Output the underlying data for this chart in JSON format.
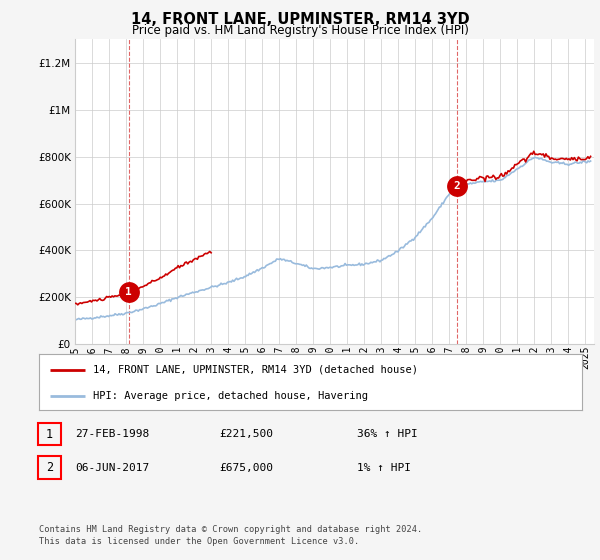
{
  "title": "14, FRONT LANE, UPMINSTER, RM14 3YD",
  "subtitle": "Price paid vs. HM Land Registry's House Price Index (HPI)",
  "ylim": [
    0,
    1300000
  ],
  "yticks": [
    0,
    200000,
    400000,
    600000,
    800000,
    1000000,
    1200000
  ],
  "ytick_labels": [
    "£0",
    "£200K",
    "£400K",
    "£600K",
    "£800K",
    "£1M",
    "£1.2M"
  ],
  "bg_color": "#f5f5f5",
  "plot_bg_color": "#ffffff",
  "grid_color": "#cccccc",
  "red_color": "#cc0000",
  "blue_color": "#99bbdd",
  "sale1_x": 1998.16,
  "sale1_y": 221500,
  "sale2_x": 2017.43,
  "sale2_y": 675000,
  "legend_line1": "14, FRONT LANE, UPMINSTER, RM14 3YD (detached house)",
  "legend_line2": "HPI: Average price, detached house, Havering",
  "note1_date": "27-FEB-1998",
  "note1_price": "£221,500",
  "note1_hpi": "36% ↑ HPI",
  "note2_date": "06-JUN-2017",
  "note2_price": "£675,000",
  "note2_hpi": "1% ↑ HPI",
  "footer": "Contains HM Land Registry data © Crown copyright and database right 2024.\nThis data is licensed under the Open Government Licence v3.0.",
  "x_start": 1995,
  "x_end": 2025.5,
  "xtick_years": [
    1995,
    1996,
    1997,
    1998,
    1999,
    2000,
    2001,
    2002,
    2003,
    2004,
    2005,
    2006,
    2007,
    2008,
    2009,
    2010,
    2011,
    2012,
    2013,
    2014,
    2015,
    2016,
    2017,
    2018,
    2019,
    2020,
    2021,
    2022,
    2023,
    2024,
    2025
  ]
}
